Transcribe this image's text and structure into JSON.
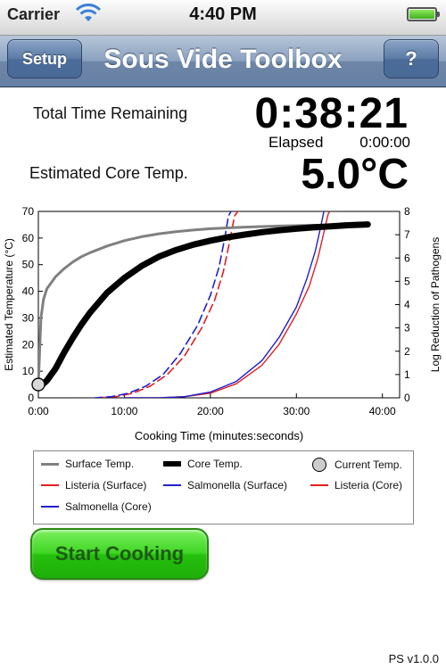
{
  "status_bar": {
    "carrier": "Carrier",
    "time": "4:40 PM",
    "battery_level": 1.0,
    "icons": [
      "wifi-icon",
      "battery-icon"
    ]
  },
  "nav": {
    "title": "Sous Vide Toolbox",
    "left_button": "Setup",
    "right_button": "?"
  },
  "readout": {
    "total_label": "Total Time Remaining",
    "total_value": "0:38:21",
    "elapsed_label": "Elapsed",
    "elapsed_value": "0:00:00",
    "core_label": "Estimated Core Temp.",
    "core_value": "5.0°C"
  },
  "chart_data": {
    "type": "line",
    "xlabel": "Cooking Time (minutes:seconds)",
    "ylabel": "Estimated Temperature (°C)",
    "y2label": "Log Reduction of Pathogens",
    "xlim": [
      0,
      42
    ],
    "ylim": [
      0,
      70
    ],
    "y2lim": [
      0,
      8
    ],
    "x_ticks": [
      0,
      10,
      20,
      30,
      40
    ],
    "x_tick_labels": [
      "0:00",
      "10:00",
      "20:00",
      "30:00",
      "40:00"
    ],
    "y_ticks": [
      0,
      10,
      20,
      30,
      40,
      50,
      60,
      70
    ],
    "y2_ticks": [
      0,
      1,
      2,
      3,
      4,
      5,
      6,
      7,
      8
    ],
    "series": [
      {
        "name": "Surface Temp.",
        "axis": "left",
        "color": "#808080",
        "style": "solid-medium",
        "points": [
          [
            0,
            5
          ],
          [
            0.3,
            30
          ],
          [
            0.6,
            37
          ],
          [
            1,
            41
          ],
          [
            2,
            45.5
          ],
          [
            3,
            48.5
          ],
          [
            4,
            51
          ],
          [
            5,
            53
          ],
          [
            6,
            54.5
          ],
          [
            8,
            57
          ],
          [
            10,
            59
          ],
          [
            12,
            60.5
          ],
          [
            14,
            61.6
          ],
          [
            16,
            62.4
          ],
          [
            18,
            63
          ],
          [
            20,
            63.5
          ],
          [
            24,
            64.1
          ],
          [
            28,
            64.5
          ],
          [
            32,
            64.8
          ],
          [
            38.3,
            65
          ]
        ]
      },
      {
        "name": "Core Temp.",
        "axis": "left",
        "color": "#000000",
        "style": "solid-thick",
        "points": [
          [
            0.5,
            5
          ],
          [
            1,
            6.5
          ],
          [
            2,
            11
          ],
          [
            3,
            17
          ],
          [
            4,
            22.5
          ],
          [
            5,
            27.5
          ],
          [
            6,
            32
          ],
          [
            8,
            39.5
          ],
          [
            10,
            45
          ],
          [
            12,
            49.5
          ],
          [
            14,
            53
          ],
          [
            16,
            55.5
          ],
          [
            18,
            57.5
          ],
          [
            20,
            59
          ],
          [
            22,
            60.3
          ],
          [
            24,
            61.3
          ],
          [
            26,
            62.2
          ],
          [
            28,
            62.9
          ],
          [
            30,
            63.5
          ],
          [
            32,
            64
          ],
          [
            34,
            64.4
          ],
          [
            36,
            64.8
          ],
          [
            38.3,
            65.1
          ]
        ]
      },
      {
        "name": "Listeria (Surface)",
        "axis": "right",
        "color": "#e02020",
        "style": "dashed",
        "points": [
          [
            7,
            0
          ],
          [
            9,
            0.05
          ],
          [
            11,
            0.2
          ],
          [
            13,
            0.5
          ],
          [
            15,
            1
          ],
          [
            17,
            1.8
          ],
          [
            19,
            3
          ],
          [
            20.5,
            4.2
          ],
          [
            21.5,
            5.4
          ],
          [
            22.3,
            6.8
          ],
          [
            22.8,
            7.8
          ],
          [
            23.2,
            8
          ]
        ]
      },
      {
        "name": "Salmonella (Surface)",
        "axis": "right",
        "color": "#2020d0",
        "style": "dashed",
        "points": [
          [
            6.5,
            0
          ],
          [
            8.5,
            0.05
          ],
          [
            10.5,
            0.2
          ],
          [
            12.5,
            0.5
          ],
          [
            14.5,
            1
          ],
          [
            16.5,
            1.9
          ],
          [
            18.5,
            3.1
          ],
          [
            20,
            4.4
          ],
          [
            21,
            5.6
          ],
          [
            21.7,
            6.9
          ],
          [
            22.1,
            7.8
          ],
          [
            22.4,
            8
          ]
        ]
      },
      {
        "name": "Listeria (Core)",
        "axis": "right",
        "color": "#e02020",
        "style": "solid-thin",
        "points": [
          [
            10,
            0
          ],
          [
            14,
            0
          ],
          [
            17,
            0.05
          ],
          [
            20,
            0.2
          ],
          [
            23,
            0.6
          ],
          [
            26,
            1.4
          ],
          [
            28,
            2.3
          ],
          [
            30,
            3.6
          ],
          [
            31.5,
            4.8
          ],
          [
            32.5,
            6
          ],
          [
            33.2,
            7.1
          ],
          [
            33.7,
            7.9
          ],
          [
            33.9,
            8
          ]
        ]
      },
      {
        "name": "Salmonella (Core)",
        "axis": "right",
        "color": "#2020d0",
        "style": "solid-thin",
        "points": [
          [
            10,
            0
          ],
          [
            14,
            0
          ],
          [
            17,
            0.05
          ],
          [
            20,
            0.25
          ],
          [
            23,
            0.7
          ],
          [
            26,
            1.6
          ],
          [
            28,
            2.6
          ],
          [
            30,
            3.9
          ],
          [
            31.2,
            5.1
          ],
          [
            32.2,
            6.3
          ],
          [
            32.8,
            7.3
          ],
          [
            33.2,
            8
          ]
        ]
      }
    ],
    "current_marker": {
      "name": "Current Temp.",
      "x": 0,
      "y": 5
    }
  },
  "legend": {
    "items": [
      {
        "label": "Surface Temp.",
        "color": "#808080",
        "kind": "line-medium"
      },
      {
        "label": "Core Temp.",
        "color": "#000000",
        "kind": "line-thick"
      },
      {
        "label": "Current Temp.",
        "color": "#cccccc",
        "kind": "circle"
      },
      {
        "label": "Listeria (Surface)",
        "color": "#e02020",
        "kind": "line-thin"
      },
      {
        "label": "Salmonella (Surface)",
        "color": "#2020d0",
        "kind": "line-thin"
      },
      {
        "label": "Listeria (Core)",
        "color": "#e02020",
        "kind": "line-thin"
      },
      {
        "label": "Salmonella (Core)",
        "color": "#2020d0",
        "kind": "line-thin"
      }
    ]
  },
  "start_button": "Start Cooking",
  "version": "PS v1.0.0"
}
